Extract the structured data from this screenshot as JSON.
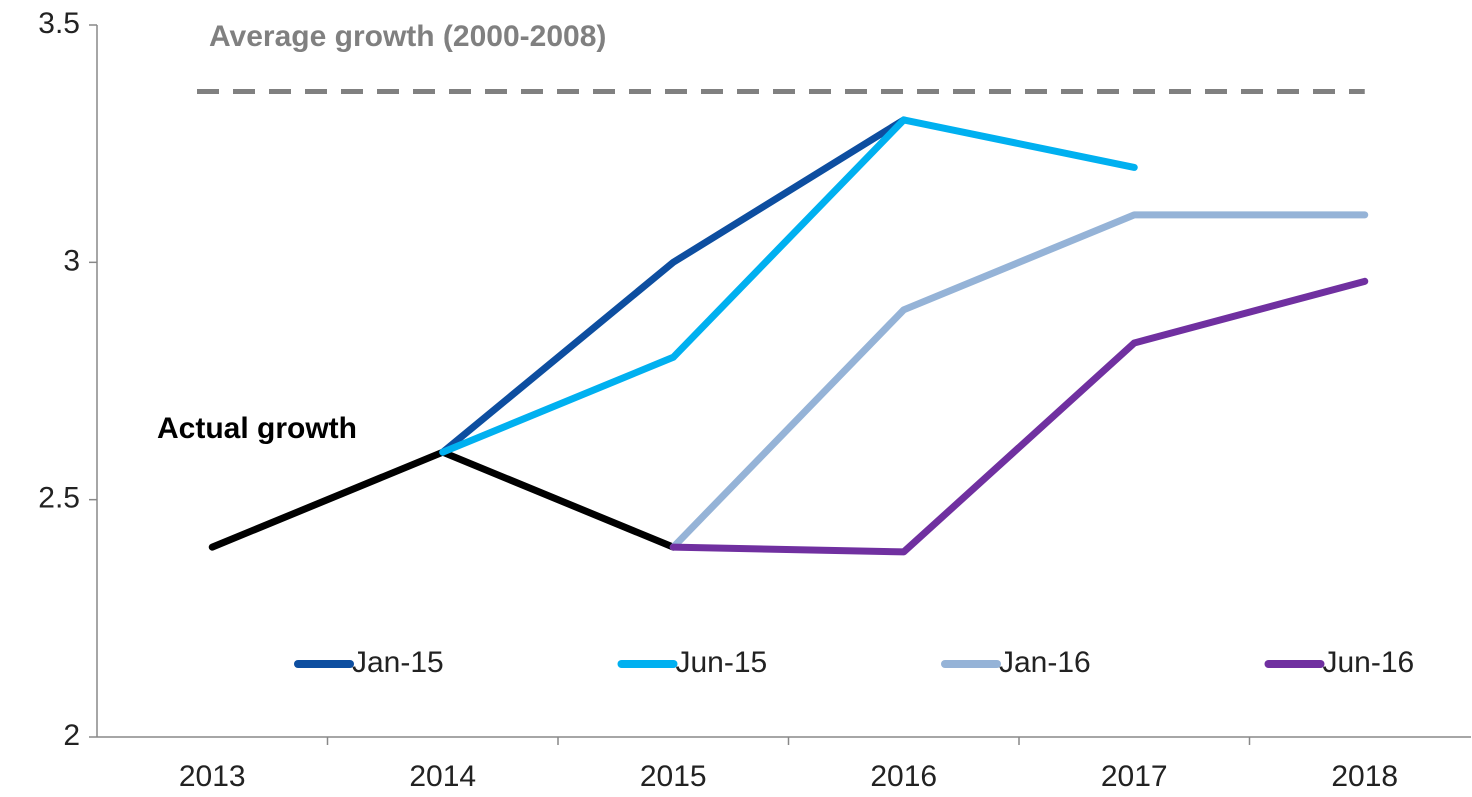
{
  "chart_data": {
    "type": "line",
    "categories": [
      "2013",
      "2014",
      "2015",
      "2016",
      "2017",
      "2018"
    ],
    "ylim": [
      2,
      3.5
    ],
    "yticks": [
      2,
      2.5,
      3,
      3.5
    ],
    "actual": {
      "label": "Actual growth",
      "color": "#000000",
      "values": [
        2.4,
        2.6,
        2.4,
        null,
        null,
        null
      ]
    },
    "reference_line": {
      "label": "Average growth (2000-2008)",
      "value": 3.36,
      "color": "#808080"
    },
    "series": [
      {
        "name": "Jan-15",
        "color": "#0d4ea0",
        "values": [
          null,
          2.6,
          3.0,
          3.3,
          null,
          null
        ]
      },
      {
        "name": "Jun-15",
        "color": "#00b0f0",
        "values": [
          null,
          2.6,
          2.8,
          3.3,
          3.2,
          null
        ]
      },
      {
        "name": "Jan-16",
        "color": "#95b3d7",
        "values": [
          null,
          null,
          2.4,
          2.9,
          3.1,
          3.1
        ]
      },
      {
        "name": "Jun-16",
        "color": "#7030a0",
        "values": [
          null,
          null,
          2.4,
          2.39,
          2.83,
          2.96
        ]
      }
    ],
    "legend": "bottom"
  }
}
